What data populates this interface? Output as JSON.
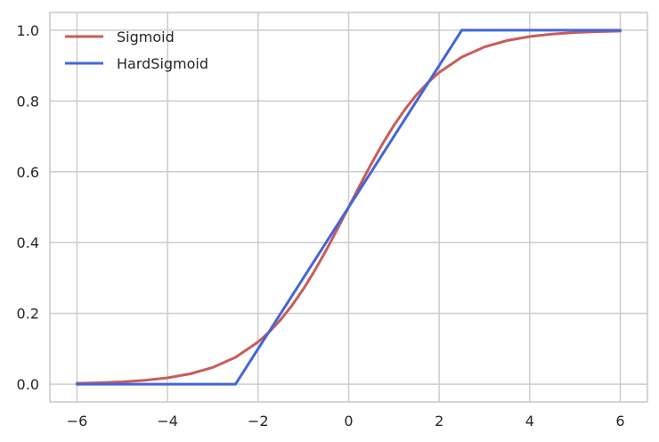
{
  "chart_data": {
    "type": "line",
    "title": "",
    "xlabel": "",
    "ylabel": "",
    "xlim": [
      -6.6,
      6.6
    ],
    "ylim": [
      -0.05,
      1.05
    ],
    "grid": true,
    "legend_position": "top-left",
    "x_ticks": [
      -6,
      -4,
      -2,
      0,
      2,
      4,
      6
    ],
    "x_tick_labels": [
      "−6",
      "−4",
      "−2",
      "0",
      "2",
      "4",
      "6"
    ],
    "y_ticks": [
      0.0,
      0.2,
      0.4,
      0.6,
      0.8,
      1.0
    ],
    "y_tick_labels": [
      "0.0",
      "0.2",
      "0.4",
      "0.6",
      "0.8",
      "1.0"
    ],
    "series": [
      {
        "name": "Sigmoid",
        "color": "#c85c5a",
        "x": [
          -6,
          -5.5,
          -5,
          -4.5,
          -4,
          -3.5,
          -3,
          -2.5,
          -2,
          -1.75,
          -1.5,
          -1.25,
          -1,
          -0.75,
          -0.5,
          -0.25,
          0,
          0.25,
          0.5,
          0.75,
          1,
          1.25,
          1.5,
          1.75,
          2,
          2.5,
          3,
          3.5,
          4,
          4.5,
          5,
          5.5,
          6
        ],
        "y": [
          0.0025,
          0.0041,
          0.0067,
          0.011,
          0.018,
          0.0293,
          0.0474,
          0.0759,
          0.1192,
          0.148,
          0.1824,
          0.2227,
          0.2689,
          0.3208,
          0.3775,
          0.4378,
          0.5,
          0.5622,
          0.6225,
          0.6792,
          0.7311,
          0.7773,
          0.8176,
          0.852,
          0.8808,
          0.9241,
          0.9526,
          0.9707,
          0.982,
          0.989,
          0.9933,
          0.9959,
          0.9975
        ]
      },
      {
        "name": "HardSigmoid",
        "color": "#4466d6",
        "x": [
          -6,
          -2.5,
          2.5,
          6
        ],
        "y": [
          0,
          0,
          1,
          1
        ]
      }
    ]
  }
}
